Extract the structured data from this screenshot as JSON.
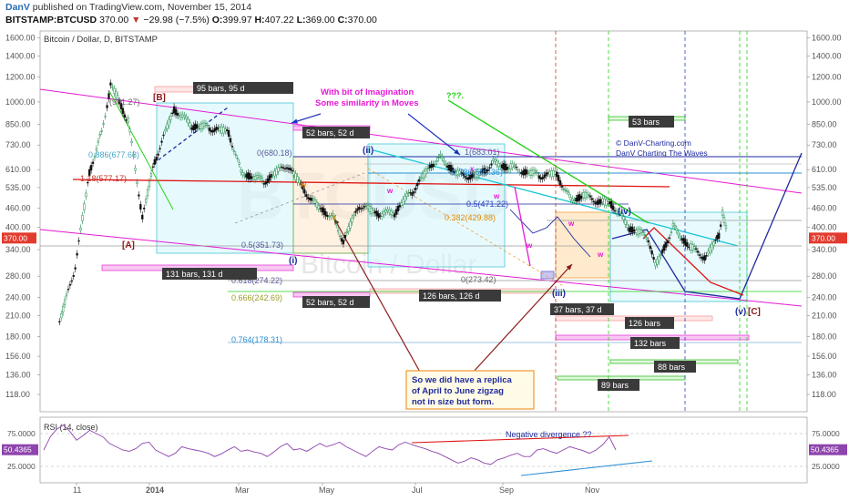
{
  "header": {
    "author": "DanV",
    "published": "published on TradingView.com, November 15, 2014",
    "symbol": "BITSTAMP:BTCUSD",
    "last": "370.00",
    "change_arrow": "▼",
    "change": "−29.98 (−7.5%)",
    "o_label": "O:",
    "o": "399.97",
    "h_label": "H:",
    "h": "407.22",
    "l_label": "L:",
    "l": "369.00",
    "c_label": "C:",
    "c": "370.00"
  },
  "chart_data": [
    {
      "type": "candlestick",
      "title": "Bitcoin / Dollar, D, BITSTAMP",
      "watermark": "BTCUSD",
      "watermark_sub": "Bitcoin / Dollar",
      "y_scale": "log",
      "ylim": [
        104,
        1680
      ],
      "y_ticks": [
        1600,
        1400,
        1200,
        1000,
        850,
        730,
        610,
        535,
        460,
        400,
        340,
        280,
        240,
        210,
        180,
        156,
        136,
        118
      ],
      "y_tick_labels": [
        "1600.00",
        "1400.00",
        "1200.00",
        "1000.00",
        "850.00",
        "730.00",
        "610.00",
        "535.00",
        "460.00",
        "400.00",
        "340.00",
        "280.00",
        "240.00",
        "210.00",
        "180.00",
        "156.00",
        "136.00",
        "118.00"
      ],
      "last_price_label": "370.00",
      "x_ticks": [
        "11",
        "2014",
        "Mar",
        "May",
        "Jul",
        "Sep",
        "Nov"
      ],
      "price_path": [
        [
          "2013-11-01",
          200
        ],
        [
          "2013-11-10",
          300
        ],
        [
          "2013-11-18",
          600
        ],
        [
          "2013-11-25",
          800
        ],
        [
          "2013-11-30",
          1130
        ],
        [
          "2013-12-05",
          1000
        ],
        [
          "2013-12-10",
          870
        ],
        [
          "2013-12-18",
          430
        ],
        [
          "2013-12-25",
          650
        ],
        [
          "2014-01-05",
          950
        ],
        [
          "2014-01-15",
          840
        ],
        [
          "2014-01-25",
          830
        ],
        [
          "2014-02-05",
          800
        ],
        [
          "2014-02-12",
          600
        ],
        [
          "2014-02-25",
          560
        ],
        [
          "2014-03-10",
          630
        ],
        [
          "2014-03-25",
          480
        ],
        [
          "2014-04-05",
          430
        ],
        [
          "2014-04-11",
          360
        ],
        [
          "2014-04-20",
          470
        ],
        [
          "2014-05-01",
          440
        ],
        [
          "2014-05-10",
          445
        ],
        [
          "2014-05-20",
          520
        ],
        [
          "2014-06-01",
          640
        ],
        [
          "2014-06-05",
          665
        ],
        [
          "2014-06-15",
          590
        ],
        [
          "2014-06-25",
          580
        ],
        [
          "2014-07-05",
          640
        ],
        [
          "2014-07-15",
          620
        ],
        [
          "2014-07-31",
          585
        ],
        [
          "2014-08-10",
          590
        ],
        [
          "2014-08-18",
          490
        ],
        [
          "2014-08-25",
          505
        ],
        [
          "2014-09-05",
          480
        ],
        [
          "2014-09-10",
          475
        ],
        [
          "2014-09-20",
          400
        ],
        [
          "2014-10-01",
          370
        ],
        [
          "2014-10-05",
          300
        ],
        [
          "2014-10-15",
          400
        ],
        [
          "2014-10-25",
          345
        ],
        [
          "2014-11-03",
          320
        ],
        [
          "2014-11-10",
          380
        ],
        [
          "2014-11-12",
          445
        ],
        [
          "2014-11-15",
          370
        ]
      ],
      "fib_labels": [
        {
          "text": "(981.27)"
        },
        {
          "text": "0.886(677.68)"
        },
        {
          "text": "1.18(577.17)"
        },
        {
          "text": "0(680.18)"
        },
        {
          "text": "0.5(351.73)"
        },
        {
          "text": "0.618(274.22)"
        },
        {
          "text": "0.666(242.69)"
        },
        {
          "text": "0.764(178.31)"
        },
        {
          "text": "1(683.01)"
        },
        {
          "text": "0.786(595.36)"
        },
        {
          "text": "0.5(471.22)"
        },
        {
          "text": "0.382(429.88)"
        },
        {
          "text": "0(273.42)"
        }
      ],
      "wave_labels": [
        "[B]",
        "[A]",
        "(i)",
        "(ii)",
        "(iii)",
        "(iv)",
        "(v)",
        "[C]"
      ],
      "bar_boxes": [
        "95 bars, 95 d",
        "52 bars, 52 d",
        "131 bars, 131 d",
        "52 bars, 52 d",
        "126 bars, 126 d",
        "37 bars, 37 d",
        "126 bars",
        "132 bars",
        "88 bars",
        "89 bars",
        "53 bars"
      ],
      "annotations": [
        {
          "text": "With bit of Imagination"
        },
        {
          "text": "Some similarity in Moves"
        },
        {
          "text": "???."
        },
        {
          "text": "© DanV-Charting.com"
        },
        {
          "text": "DanV Charting The Waves"
        },
        {
          "text": "So we did have a replica"
        },
        {
          "text": "of  April to June zigzag"
        },
        {
          "text": "not in size but form."
        }
      ]
    },
    {
      "type": "line",
      "title": "RSI (14, close)",
      "last_value_label": "50.4365",
      "y_ticks": [
        "75.0000",
        "25.0000"
      ],
      "ylim": [
        0,
        100
      ],
      "values": [
        50,
        70,
        82,
        88,
        78,
        65,
        72,
        80,
        75,
        70,
        60,
        55,
        50,
        48,
        52,
        60,
        62,
        50,
        45,
        40,
        45,
        55,
        52,
        50,
        48,
        45,
        40,
        44,
        50,
        55,
        48,
        50,
        47,
        45,
        40,
        47,
        55,
        60,
        50,
        52,
        48,
        54,
        60,
        55,
        58,
        62,
        55,
        50,
        45,
        40,
        48,
        55,
        52,
        50,
        58,
        62,
        58,
        55,
        52,
        48,
        45,
        40,
        35,
        30,
        33,
        38,
        35,
        30,
        28,
        35,
        38,
        42,
        45,
        40,
        40,
        50,
        52,
        48,
        45,
        50,
        55,
        52,
        49,
        45,
        50,
        58,
        70,
        50
      ],
      "annotation": "Negative divergence ??"
    }
  ],
  "colors": {
    "up_candle": "#1e8c4a",
    "down_candle": "#111111",
    "rsi_line": "#8e44ad",
    "magenta": "#e619d6",
    "cyan": "#18c7d8",
    "green": "#27d11a",
    "red": "#e01212",
    "navy": "#1e2a9e",
    "orange": "#f7a14a",
    "blue": "#2c8fd4",
    "price_tag": "#e23b2e"
  }
}
